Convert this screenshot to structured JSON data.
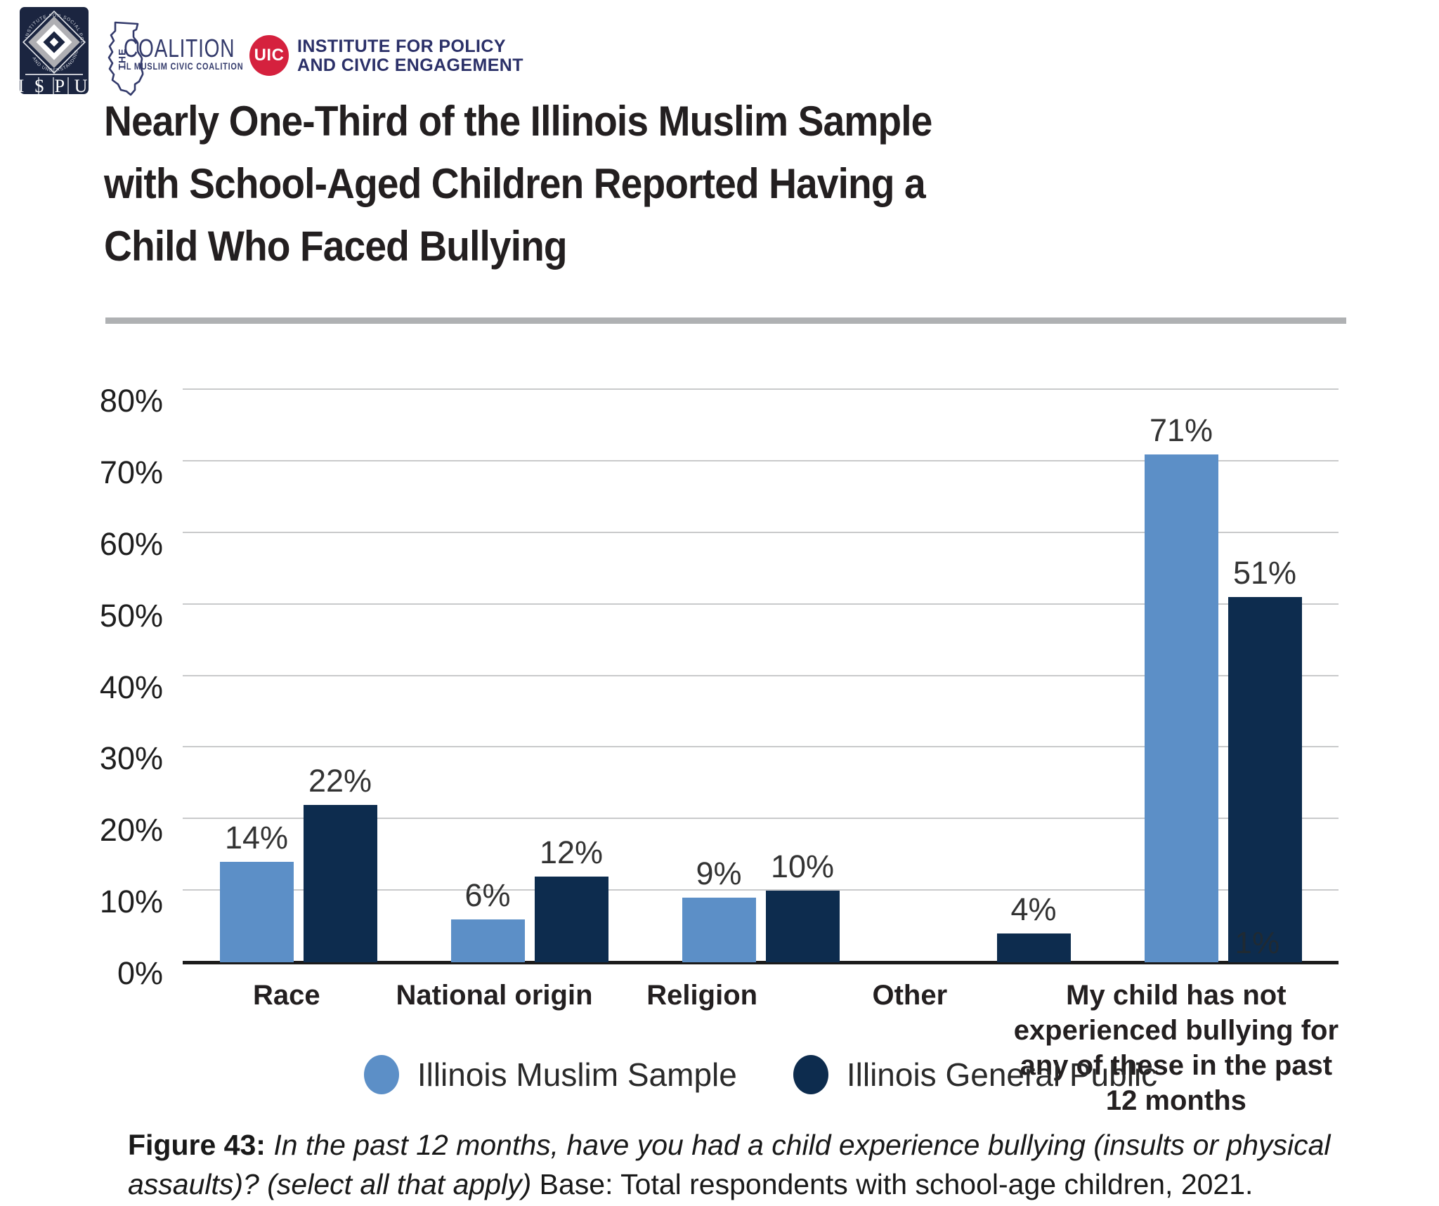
{
  "header": {
    "ispu_logo": {
      "arc_top": "INSTITUTE FOR SOCIAL POLICY",
      "arc_bottom": "AND UNDERSTANDING",
      "acronym_display": "I S P U"
    },
    "coalition_logo": {
      "the": "THE",
      "name": "COALITION",
      "subtitle": "IL MUSLIM CIVIC COALITION"
    },
    "uic_logo": {
      "badge": "UIC",
      "line1": "INSTITUTE FOR POLICY",
      "line2": "AND CIVIC ENGAGEMENT"
    }
  },
  "title": {
    "full": "Nearly One-Third of the Illinois Muslim Sample with School-Aged Children Reported Having a Child Who Faced Bullying",
    "lines": [
      "Nearly One-Third of the Illinois Muslim Sample",
      "with School-Aged Children Reported Having a",
      "Child Who Faced Bullying"
    ]
  },
  "chart_data": {
    "type": "bar",
    "title": "Nearly One-Third of the Illinois Muslim Sample with School-Aged Children Reported Having a Child Who Faced Bullying",
    "categories": [
      "Race",
      "National origin",
      "Religion",
      "Other",
      "My child has not experienced bullying for any of these in the past 12 months"
    ],
    "category_label_lines": [
      [
        "Race"
      ],
      [
        "National origin"
      ],
      [
        "Religion"
      ],
      [
        "Other"
      ],
      [
        "My child has not",
        "experienced bullying for",
        "any of these in the past",
        "12 months"
      ]
    ],
    "series": [
      {
        "name": "Illinois Muslim Sample",
        "color": "#5C8FC7",
        "values": [
          14,
          6,
          9,
          null,
          71
        ]
      },
      {
        "name": "Illinois General Public",
        "color": "#0D2C4E",
        "values": [
          22,
          12,
          10,
          4,
          51
        ]
      }
    ],
    "value_suffix": "%",
    "ylim": [
      0,
      80
    ],
    "ytick_step": 10,
    "ytick_labels": [
      "0%",
      "10%",
      "20%",
      "30%",
      "40%",
      "50%",
      "60%",
      "70%",
      "80%"
    ],
    "grid": "horizontal",
    "legend_position": "bottom",
    "stray_annotation": {
      "text": "1%",
      "category_index": 4,
      "series_index": 1,
      "placement": "inside-bar-bottom-left"
    }
  },
  "legend": {
    "items": [
      "Illinois Muslim Sample",
      "Illinois General Public"
    ]
  },
  "caption": {
    "figure_label": "Figure 43: ",
    "question": "In the past 12 months, have you had a child experience bullying (insults or physical assaults)? (select all that apply) ",
    "base": "Base: Total respondents with school-age children, 2021."
  },
  "colors": {
    "muslim_sample_blue": "#5C8FC7",
    "general_public_navy": "#0D2C4E",
    "gridline_gray": "#C9CACB",
    "axis_black": "#1B1B1B",
    "divider_gray": "#AFB1B3",
    "title_black": "#231F20",
    "uic_red": "#D5213E",
    "logo_navy": "#1B2540",
    "coalition_navy": "#333A6B"
  }
}
